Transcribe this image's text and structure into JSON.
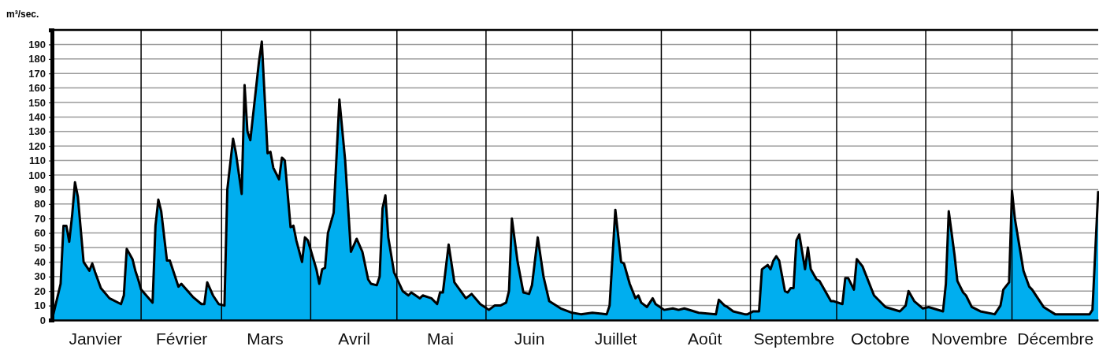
{
  "chart_data": {
    "type": "area",
    "ylabel": "m³/sec.",
    "xlim": [
      "--01-01",
      "--12-31"
    ],
    "xticks": [
      {
        "value": "--01-16",
        "label": "Janvier"
      },
      {
        "value": "--02-15",
        "label": "Février"
      },
      {
        "value": "--03-16",
        "label": "Mars"
      },
      {
        "value": "--04-16",
        "label": "Avril"
      },
      {
        "value": "--05-16",
        "label": "Mai"
      },
      {
        "value": "--06-16",
        "label": "Juin"
      },
      {
        "value": "--07-16",
        "label": "Juillet"
      },
      {
        "value": "--08-16",
        "label": "Août"
      },
      {
        "value": "--09-16",
        "label": "Septembre"
      },
      {
        "value": "--10-16",
        "label": "Octobre"
      },
      {
        "value": "--11-16",
        "label": "Novembre"
      },
      {
        "value": "--12-16",
        "label": "Décembre"
      }
    ],
    "ylim": [
      0,
      200
    ],
    "yticks": [
      0,
      10,
      20,
      30,
      40,
      50,
      60,
      70,
      80,
      90,
      100,
      110,
      120,
      130,
      140,
      150,
      160,
      170,
      180,
      190
    ],
    "grid": "y",
    "ref_lines": [
      {
        "axis": "x",
        "value": "--02-01"
      },
      {
        "axis": "x",
        "value": "--03-01"
      },
      {
        "axis": "x",
        "value": "--04-01"
      },
      {
        "axis": "x",
        "value": "--05-01"
      },
      {
        "axis": "x",
        "value": "--06-01"
      },
      {
        "axis": "x",
        "value": "--07-01"
      },
      {
        "axis": "x",
        "value": "--08-01"
      },
      {
        "axis": "x",
        "value": "--09-01"
      },
      {
        "axis": "x",
        "value": "--10-01"
      },
      {
        "axis": "x",
        "value": "--11-01"
      },
      {
        "axis": "x",
        "value": "--12-01"
      }
    ],
    "series": [
      {
        "color": "#00aeef",
        "x": [
          "--01-01",
          "--01-04",
          "--01-05",
          "--01-06",
          "--01-07",
          "--01-08",
          "--01-09",
          "--01-10",
          "--01-12",
          "--01-14",
          "--01-15",
          "--01-16",
          "--01-18",
          "--01-21",
          "--01-25",
          "--01-26",
          "--01-27",
          "--01-29",
          "--01-30",
          "--01-31",
          "--02-01",
          "--02-05",
          "--02-06",
          "--02-07",
          "--02-08",
          "--02-10",
          "--02-11",
          "--02-14",
          "--02-15",
          "--02-19",
          "--02-22",
          "--02-23",
          "--02-24",
          "--02-26",
          "--02-28",
          "--03-02",
          "--03-03",
          "--03-05",
          "--03-06",
          "--03-08",
          "--03-09",
          "--03-10",
          "--03-11",
          "--03-13",
          "--03-14",
          "--03-15",
          "--03-17",
          "--03-18",
          "--03-19",
          "--03-21",
          "--03-22",
          "--03-23",
          "--03-25",
          "--03-26",
          "--03-27",
          "--03-29",
          "--03-30",
          "--03-31",
          "--04-03",
          "--04-04",
          "--04-05",
          "--04-06",
          "--04-07",
          "--04-09",
          "--04-11",
          "--04-13",
          "--04-15",
          "--04-17",
          "--04-19",
          "--04-21",
          "--04-22",
          "--04-24",
          "--04-25",
          "--04-26",
          "--04-27",
          "--04-28",
          "--04-30",
          "--05-03",
          "--05-05",
          "--05-06",
          "--05-09",
          "--05-10",
          "--05-13",
          "--05-15",
          "--05-16",
          "--05-17",
          "--05-19",
          "--05-21",
          "--05-25",
          "--05-27",
          "--05-30",
          "--06-02",
          "--06-04",
          "--06-06",
          "--06-08",
          "--06-09",
          "--06-10",
          "--06-12",
          "--06-14",
          "--06-16",
          "--06-17",
          "--06-19",
          "--06-21",
          "--06-23",
          "--06-27",
          "--07-01",
          "--07-04",
          "--07-08",
          "--07-13",
          "--07-14",
          "--07-16",
          "--07-18",
          "--07-19",
          "--07-21",
          "--07-23",
          "--07-24",
          "--07-25",
          "--07-27",
          "--07-29",
          "--07-30",
          "--08-02",
          "--08-05",
          "--08-07",
          "--08-09",
          "--08-14",
          "--08-20",
          "--08-21",
          "--08-23",
          "--08-24",
          "--08-26",
          "--08-30",
          "--08-31",
          "--09-02",
          "--09-04",
          "--09-05",
          "--09-07",
          "--09-08",
          "--09-09",
          "--09-10",
          "--09-11",
          "--09-13",
          "--09-14",
          "--09-15",
          "--09-16",
          "--09-17",
          "--09-18",
          "--09-20",
          "--09-21",
          "--09-22",
          "--09-24",
          "--09-25",
          "--09-29",
          "--09-30",
          "--10-03",
          "--10-04",
          "--10-05",
          "--10-07",
          "--10-08",
          "--10-10",
          "--10-14",
          "--10-18",
          "--10-23",
          "--10-25",
          "--10-26",
          "--10-28",
          "--10-31",
          "--11-02",
          "--11-07",
          "--11-08",
          "--11-09",
          "--11-11",
          "--11-12",
          "--11-14",
          "--11-15",
          "--11-17",
          "--11-20",
          "--11-25",
          "--11-27",
          "--11-28",
          "--11-30",
          "--12-01",
          "--12-02",
          "--12-05",
          "--12-07",
          "--12-08",
          "--12-12",
          "--12-16",
          "--12-28",
          "--12-29",
          "--12-31"
        ],
        "values": [
          0,
          25,
          65,
          65,
          54,
          72,
          95,
          85,
          40,
          34,
          39,
          33,
          22,
          15,
          11,
          17,
          49,
          42,
          34,
          28,
          21,
          12,
          65,
          83,
          75,
          41,
          41,
          23,
          25,
          16,
          11,
          11,
          26,
          17,
          11,
          10,
          90,
          125,
          115,
          87,
          162,
          130,
          124,
          160,
          178,
          192,
          115,
          116,
          105,
          97,
          112,
          110,
          64,
          65,
          55,
          40,
          57,
          55,
          35,
          25,
          35,
          36,
          60,
          74,
          152,
          110,
          47,
          56,
          47,
          28,
          25,
          24,
          30,
          77,
          86,
          57,
          33,
          20,
          17,
          19,
          15,
          17,
          15,
          11,
          19,
          19,
          52,
          26,
          15,
          18,
          11,
          7,
          10,
          10,
          12,
          20,
          70,
          40,
          19,
          18,
          24,
          57,
          30,
          13,
          8,
          5,
          4,
          5,
          4,
          10,
          76,
          40,
          39,
          25,
          15,
          17,
          12,
          9,
          15,
          11,
          7,
          8,
          7,
          8,
          5,
          4,
          14,
          10,
          9,
          6,
          4,
          4,
          6,
          6,
          35,
          38,
          35,
          41,
          44,
          41,
          20,
          19,
          22,
          22,
          55,
          59,
          35,
          50,
          35,
          28,
          27,
          13,
          13,
          11,
          29,
          29,
          21,
          42,
          37,
          17,
          9,
          6,
          10,
          20,
          13,
          8,
          9,
          6,
          25,
          75,
          45,
          27,
          19,
          17,
          9,
          6,
          4,
          10,
          21,
          26,
          89,
          70,
          34,
          23,
          21,
          9,
          4,
          4,
          7,
          89
        ]
      }
    ]
  }
}
